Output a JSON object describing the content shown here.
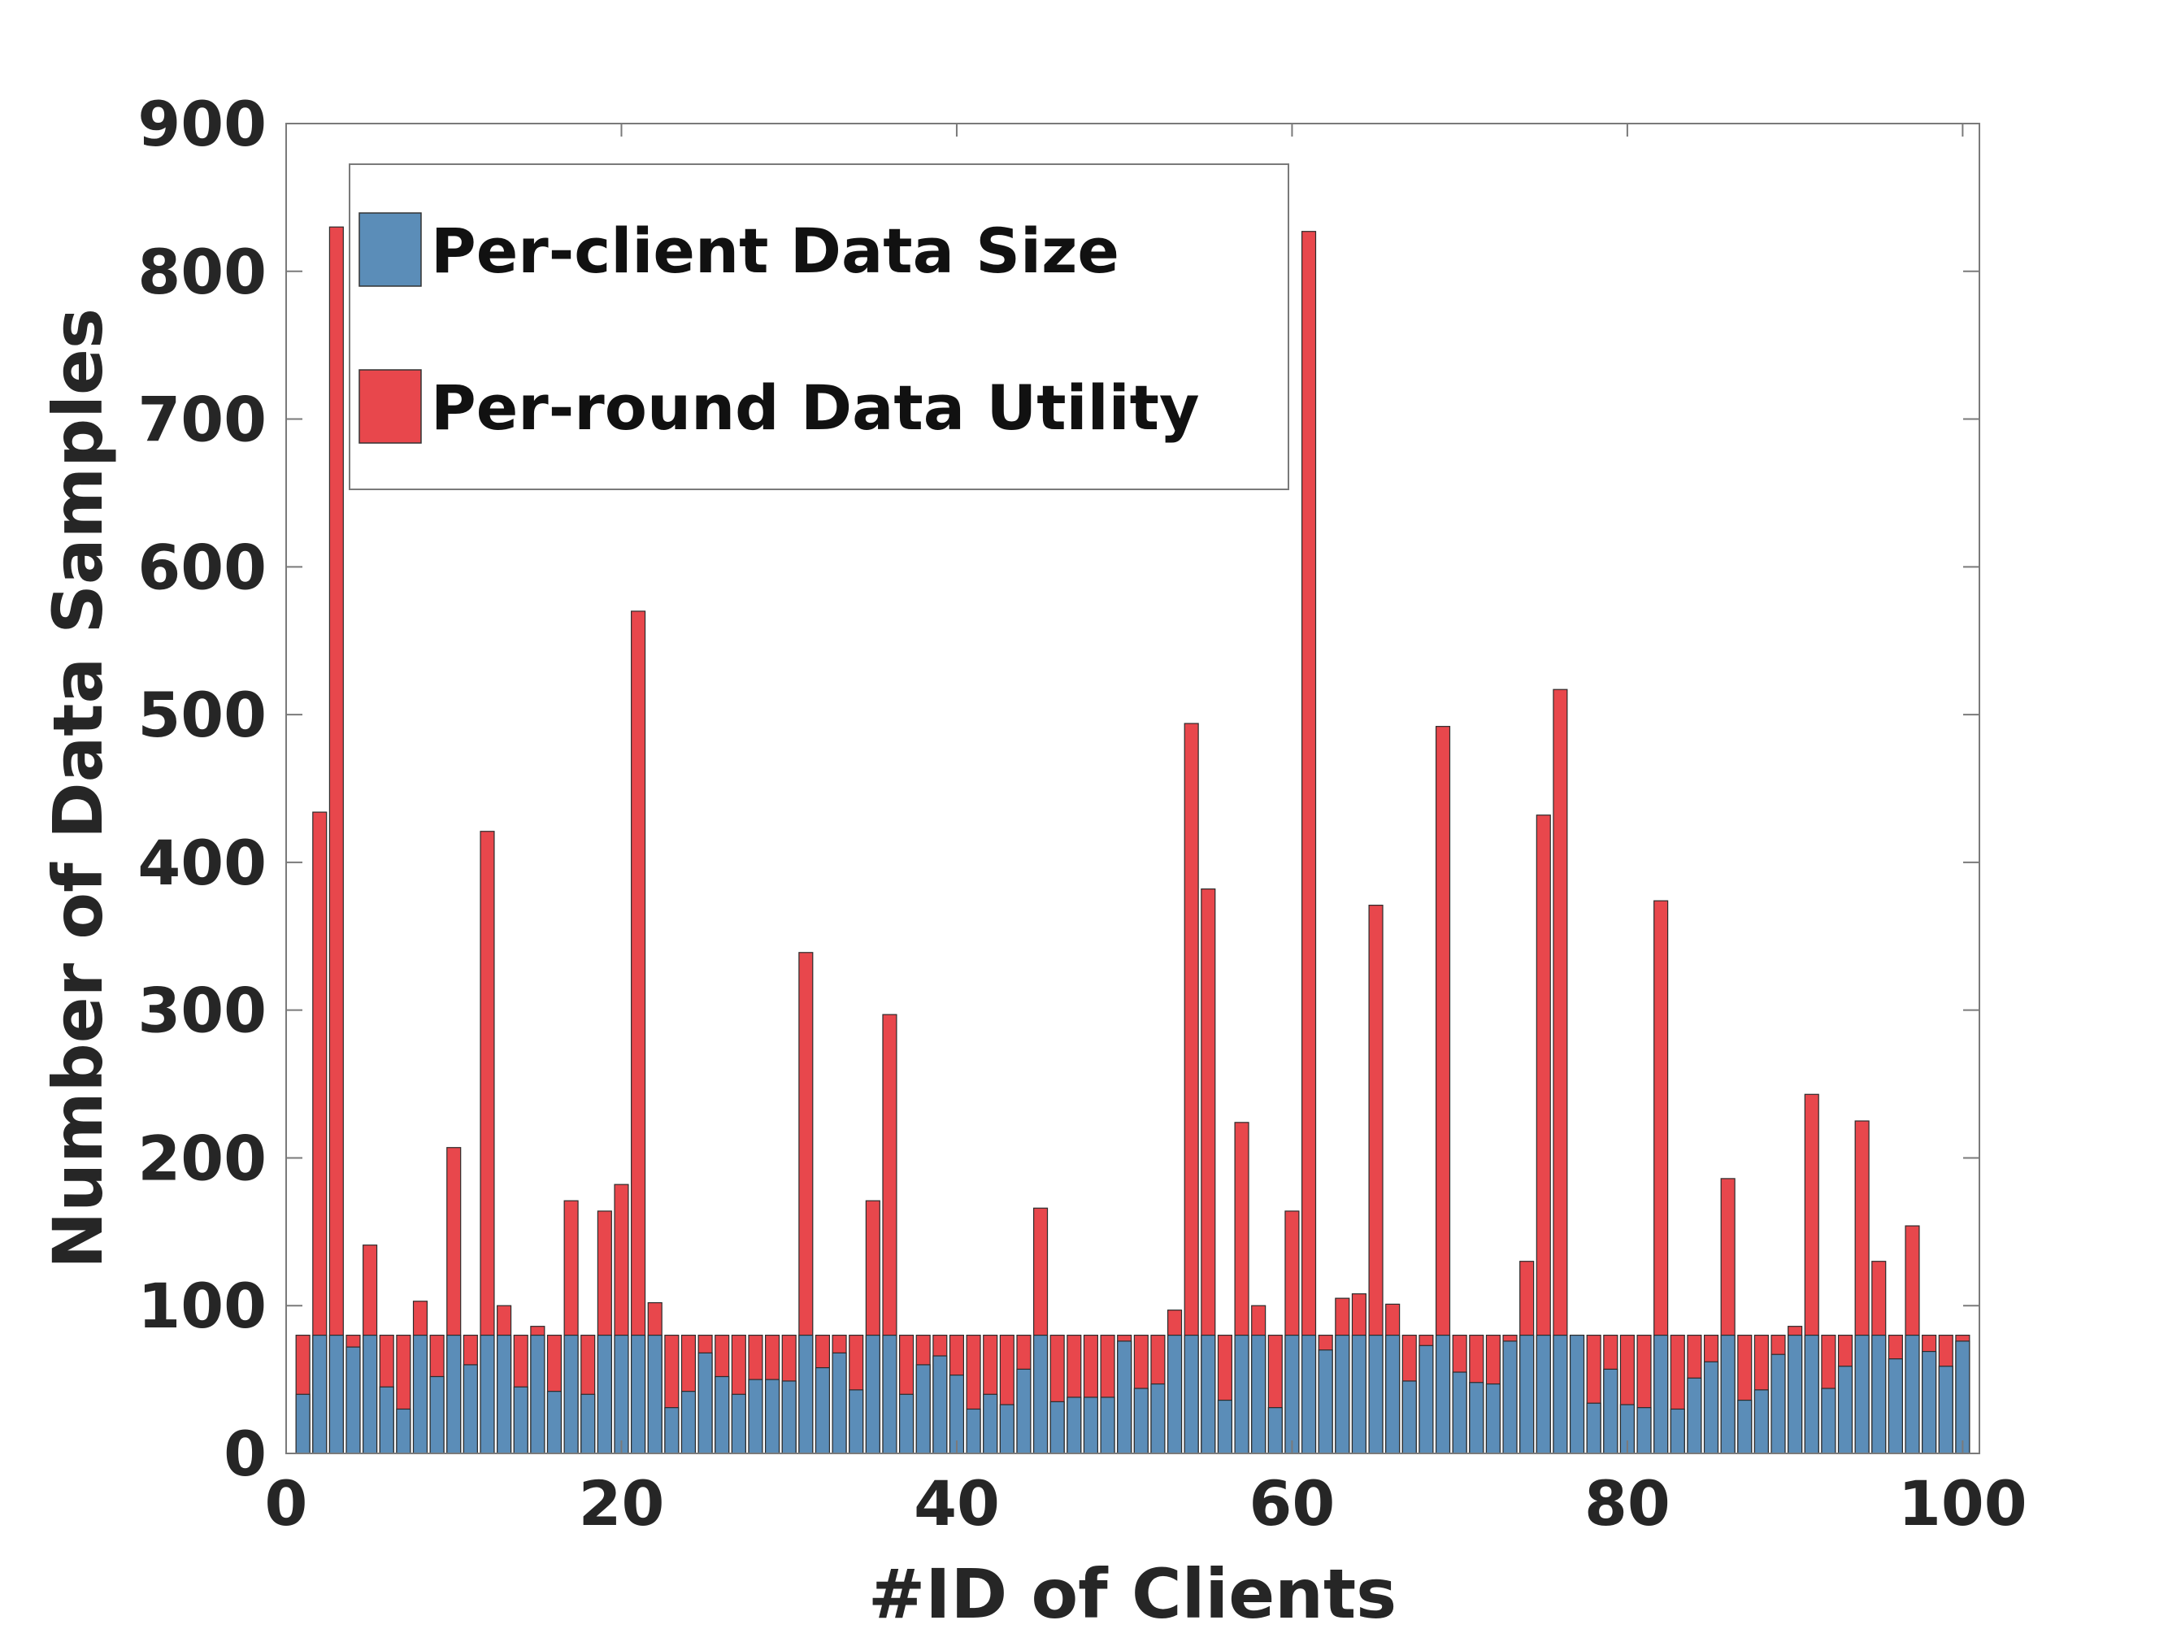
{
  "chart_data": {
    "type": "bar",
    "xlabel": "#ID of Clients",
    "ylabel": "Number of Data Samples",
    "xlim": [
      0,
      101
    ],
    "ylim": [
      0,
      900
    ],
    "xticks": [
      "0",
      "20",
      "40",
      "60",
      "80",
      "100"
    ],
    "yticks": [
      "0",
      "100",
      "200",
      "300",
      "400",
      "500",
      "600",
      "700",
      "800",
      "900"
    ],
    "legend_position": "top-left",
    "stacked_overlap": true,
    "x": [
      1,
      2,
      3,
      4,
      5,
      6,
      7,
      8,
      9,
      10,
      11,
      12,
      13,
      14,
      15,
      16,
      17,
      18,
      19,
      20,
      21,
      22,
      23,
      24,
      25,
      26,
      27,
      28,
      29,
      30,
      31,
      32,
      33,
      34,
      35,
      36,
      37,
      38,
      39,
      40,
      41,
      42,
      43,
      44,
      45,
      46,
      47,
      48,
      49,
      50,
      51,
      52,
      53,
      54,
      55,
      56,
      57,
      58,
      59,
      60,
      61,
      62,
      63,
      64,
      65,
      66,
      67,
      68,
      69,
      70,
      71,
      72,
      73,
      74,
      75,
      76,
      77,
      78,
      79,
      80,
      81,
      82,
      83,
      84,
      85,
      86,
      87,
      88,
      89,
      90,
      91,
      92,
      93,
      94,
      95,
      96,
      97,
      98,
      99,
      100
    ],
    "series": [
      {
        "name": "Per-client Data Size",
        "color": "#5b8db8",
        "values": [
          40,
          80,
          80,
          72,
          80,
          45,
          30,
          80,
          52,
          80,
          60,
          80,
          80,
          45,
          80,
          42,
          80,
          40,
          80,
          80,
          80,
          80,
          31,
          42,
          68,
          52,
          40,
          50,
          50,
          49,
          80,
          58,
          68,
          43,
          80,
          80,
          40,
          60,
          66,
          53,
          30,
          40,
          33,
          57,
          80,
          35,
          38,
          38,
          38,
          76,
          44,
          47,
          80,
          80,
          80,
          36,
          80,
          80,
          31,
          80,
          80,
          70,
          80,
          80,
          80,
          80,
          49,
          73,
          80,
          55,
          48,
          47,
          76,
          80,
          80,
          80,
          80,
          34,
          57,
          33,
          31,
          80,
          30,
          51,
          62,
          80,
          36,
          43,
          67,
          80,
          80,
          44,
          59,
          80,
          80,
          64,
          80,
          69,
          59,
          76
        ]
      },
      {
        "name": "Per-round Data Utility",
        "color": "#e8474c",
        "values": [
          80,
          434,
          830,
          80,
          141,
          80,
          80,
          103,
          80,
          207,
          80,
          421,
          100,
          80,
          86,
          80,
          171,
          80,
          164,
          182,
          570,
          102,
          80,
          80,
          80,
          80,
          80,
          80,
          80,
          80,
          339,
          80,
          80,
          80,
          171,
          297,
          80,
          80,
          80,
          80,
          80,
          80,
          80,
          80,
          166,
          80,
          80,
          80,
          80,
          80,
          80,
          80,
          97,
          494,
          382,
          80,
          224,
          100,
          80,
          164,
          827,
          80,
          105,
          108,
          371,
          101,
          80,
          80,
          492,
          80,
          80,
          80,
          80,
          130,
          432,
          517,
          80,
          80,
          80,
          80,
          80,
          374,
          80,
          80,
          80,
          186,
          80,
          80,
          80,
          86,
          243,
          80,
          80,
          225,
          130,
          80,
          154,
          80,
          80,
          80
        ]
      }
    ]
  }
}
